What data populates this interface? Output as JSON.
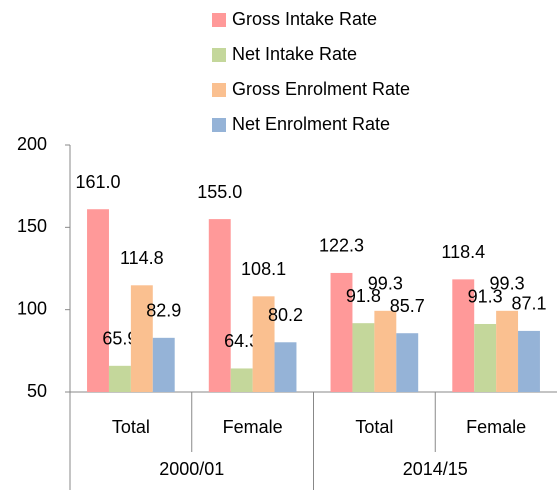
{
  "chart_data": {
    "type": "bar",
    "categories": [
      "Total",
      "Female",
      "Total",
      "Female"
    ],
    "groups": [
      "2000/01",
      "2014/15"
    ],
    "series": [
      {
        "name": "Gross Intake Rate",
        "color": "#ff9999",
        "values": [
          161.0,
          155.0,
          122.3,
          118.4
        ],
        "value_labels": [
          "161.0",
          "155.0",
          "122.3",
          "118.4"
        ]
      },
      {
        "name": "Net Intake Rate",
        "color": "#c4d79b",
        "values": [
          65.9,
          64.3,
          91.8,
          91.3
        ],
        "value_labels": [
          "65.9",
          "64.3",
          "91.8",
          "91.3"
        ]
      },
      {
        "name": "Gross Enrolment Rate",
        "color": "#fac090",
        "values": [
          114.8,
          108.1,
          99.3,
          99.3
        ],
        "value_labels": [
          "114.8",
          "108.1",
          "99.3",
          "99.3"
        ]
      },
      {
        "name": "Net Enrolment Rate",
        "color": "#95b3d7",
        "values": [
          82.9,
          80.2,
          85.7,
          87.1
        ],
        "value_labels": [
          "82.9",
          "80.2",
          "85.7",
          "87.1"
        ]
      }
    ],
    "ylim": [
      50,
      200
    ],
    "yticks": [
      50,
      100,
      150,
      200
    ],
    "grid": false,
    "legend": "top"
  }
}
